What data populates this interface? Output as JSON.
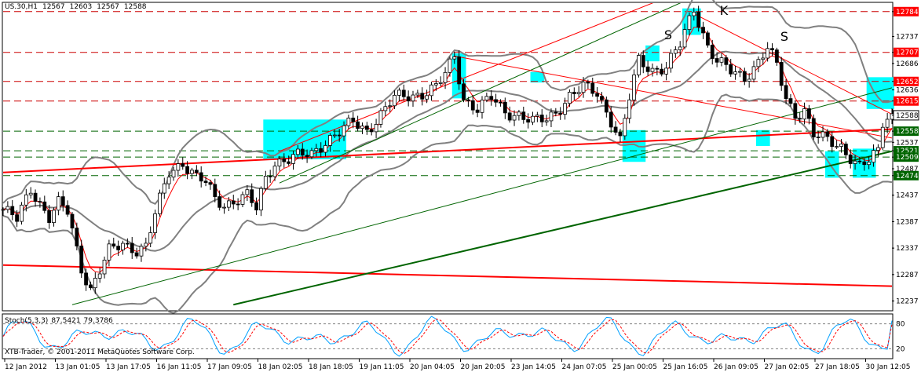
{
  "header": {
    "symbol": "US.30,H1",
    "open": "12567",
    "high": "12603",
    "low": "12567",
    "close": "12588"
  },
  "stochastic": {
    "title": "Stoch(5,3,3)",
    "main": "87.5421",
    "signal": "79.3786",
    "levels": [
      "80",
      "20"
    ]
  },
  "copyright": "XTB-Trader, © 2001-2011 MetaQuotes Software Corp.",
  "annotations": {
    "s_left": "S",
    "head": "K",
    "s_right": "S"
  },
  "colors": {
    "background": "#ffffff",
    "candles": "#000000",
    "bollinger": "#808080",
    "ma": "#ff0000",
    "trend_red": "#ff0000",
    "trend_green": "#006400",
    "horizontal_levels": "#cc0000",
    "horizontal_support": "#006400",
    "highlight": "#00ffff",
    "stoch_main": "#00a0ff",
    "stoch_signal": "#ff0000"
  },
  "chart_data": {
    "type": "candlestick",
    "timeframe": "H1",
    "ylim": [
      12220,
      12800
    ],
    "price_ticks": [
      "12784",
      "12737",
      "12707",
      "12686",
      "12652",
      "12636",
      "12615",
      "12588",
      "12558",
      "12537",
      "12521",
      "12509",
      "12487",
      "12474",
      "12437",
      "12387",
      "12337",
      "12287",
      "12237"
    ],
    "x_labels": [
      "12 Jan 2012",
      "13 Jan 01:05",
      "13 Jan 17:05",
      "16 Jan 11:05",
      "17 Jan 09:05",
      "18 Jan 02:05",
      "18 Jan 18:05",
      "19 Jan 11:05",
      "20 Jan 04:05",
      "20 Jan 20:05",
      "23 Jan 14:05",
      "24 Jan 07:05",
      "25 Jan 00:05",
      "25 Jan 16:05",
      "26 Jan 09:05",
      "27 Jan 02:05",
      "27 Jan 18:05",
      "30 Jan 12:05"
    ],
    "price_path": [
      [
        0,
        12410
      ],
      [
        3,
        12390
      ],
      [
        6,
        12450
      ],
      [
        10,
        12395
      ],
      [
        12,
        12420
      ],
      [
        14,
        12405
      ],
      [
        17,
        12300
      ],
      [
        19,
        12260
      ],
      [
        23,
        12330
      ],
      [
        26,
        12345
      ],
      [
        29,
        12335
      ],
      [
        31,
        12340
      ],
      [
        33,
        12400
      ],
      [
        36,
        12480
      ],
      [
        39,
        12500
      ],
      [
        42,
        12470
      ],
      [
        44,
        12460
      ],
      [
        46,
        12430
      ],
      [
        48,
        12420
      ],
      [
        51,
        12430
      ],
      [
        53,
        12435
      ],
      [
        55,
        12410
      ],
      [
        57,
        12470
      ],
      [
        59,
        12500
      ],
      [
        62,
        12505
      ],
      [
        64,
        12510
      ],
      [
        67,
        12515
      ],
      [
        70,
        12540
      ],
      [
        73,
        12555
      ],
      [
        76,
        12575
      ],
      [
        79,
        12560
      ],
      [
        82,
        12590
      ],
      [
        85,
        12620
      ],
      [
        88,
        12625
      ],
      [
        91,
        12630
      ],
      [
        94,
        12640
      ],
      [
        96,
        12665
      ],
      [
        98,
        12700
      ],
      [
        100,
        12620
      ],
      [
        103,
        12600
      ],
      [
        106,
        12620
      ],
      [
        109,
        12595
      ],
      [
        112,
        12590
      ],
      [
        115,
        12575
      ],
      [
        118,
        12580
      ],
      [
        120,
        12595
      ],
      [
        123,
        12625
      ],
      [
        126,
        12640
      ],
      [
        129,
        12630
      ],
      [
        132,
        12580
      ],
      [
        134,
        12540
      ],
      [
        136,
        12620
      ],
      [
        138,
        12690
      ],
      [
        141,
        12675
      ],
      [
        144,
        12680
      ],
      [
        147,
        12720
      ],
      [
        150,
        12790
      ],
      [
        153,
        12720
      ],
      [
        155,
        12690
      ],
      [
        158,
        12670
      ],
      [
        161,
        12660
      ],
      [
        164,
        12690
      ],
      [
        166,
        12715
      ],
      [
        168,
        12680
      ],
      [
        170,
        12620
      ],
      [
        172,
        12590
      ],
      [
        174,
        12600
      ],
      [
        176,
        12550
      ],
      [
        179,
        12540
      ],
      [
        182,
        12530
      ],
      [
        184,
        12510
      ],
      [
        186,
        12490
      ],
      [
        188,
        12500
      ],
      [
        190,
        12520
      ],
      [
        191,
        12575
      ],
      [
        192,
        12588
      ]
    ],
    "highlight_zones": [
      {
        "x": [
          57,
          74
        ],
        "y": [
          12505,
          12580
        ]
      },
      {
        "x": [
          98,
          100
        ],
        "y": [
          12620,
          12705
        ]
      },
      {
        "x": [
          115,
          117
        ],
        "y": [
          12650,
          12670
        ]
      },
      {
        "x": [
          135,
          139
        ],
        "y": [
          12500,
          12560
        ]
      },
      {
        "x": [
          140,
          142
        ],
        "y": [
          12690,
          12720
        ]
      },
      {
        "x": [
          148,
          151
        ],
        "y": [
          12740,
          12790
        ]
      },
      {
        "x": [
          164,
          166
        ],
        "y": [
          12530,
          12560
        ]
      },
      {
        "x": [
          179,
          181
        ],
        "y": [
          12470,
          12520
        ]
      },
      {
        "x": [
          185,
          189
        ],
        "y": [
          12470,
          12525
        ]
      },
      {
        "x": [
          188,
          193
        ],
        "y": [
          12600,
          12660
        ]
      }
    ],
    "horizontal_lines": [
      {
        "value": 12784,
        "color": "red"
      },
      {
        "value": 12707,
        "color": "red"
      },
      {
        "value": 12652,
        "color": "red"
      },
      {
        "value": 12615,
        "color": "red"
      },
      {
        "value": 12558,
        "color": "green"
      },
      {
        "value": 12521,
        "color": "green"
      },
      {
        "value": 12509,
        "color": "green"
      },
      {
        "value": 12474,
        "color": "green"
      }
    ],
    "highlighted_price_labels": [
      {
        "value": "12784",
        "kind": "red"
      },
      {
        "value": "12707",
        "kind": "red"
      },
      {
        "value": "12652",
        "kind": "red"
      },
      {
        "value": "12615",
        "kind": "red"
      },
      {
        "value": "12588",
        "kind": "current"
      },
      {
        "value": "12558",
        "kind": "green"
      },
      {
        "value": "12521",
        "kind": "green"
      },
      {
        "value": "12509",
        "kind": "green"
      },
      {
        "value": "12474",
        "kind": "green"
      }
    ],
    "trend_lines": [
      {
        "color": "red",
        "width": 2,
        "from": [
          0,
          12480
        ],
        "to": [
          193,
          12562
        ]
      },
      {
        "color": "red",
        "width": 2,
        "from": [
          0,
          12305
        ],
        "to": [
          193,
          12265
        ]
      },
      {
        "color": "green",
        "width": 2,
        "from": [
          50,
          12230
        ],
        "to": [
          193,
          12520
        ]
      },
      {
        "color": "green",
        "width": 1,
        "from": [
          15,
          12230
        ],
        "to": [
          193,
          12640
        ]
      },
      {
        "color": "red",
        "width": 1,
        "from": [
          60,
          12520
        ],
        "to": [
          193,
          12980
        ]
      },
      {
        "color": "green",
        "width": 1,
        "from": [
          60,
          12460
        ],
        "to": [
          193,
          12980
        ]
      },
      {
        "color": "red",
        "width": 1,
        "from": [
          98,
          12700
        ],
        "to": [
          193,
          12545
        ]
      },
      {
        "color": "red",
        "width": 1,
        "from": [
          150,
          12780
        ],
        "to": [
          193,
          12590
        ]
      }
    ],
    "stoch_levels": [
      80,
      20
    ]
  }
}
